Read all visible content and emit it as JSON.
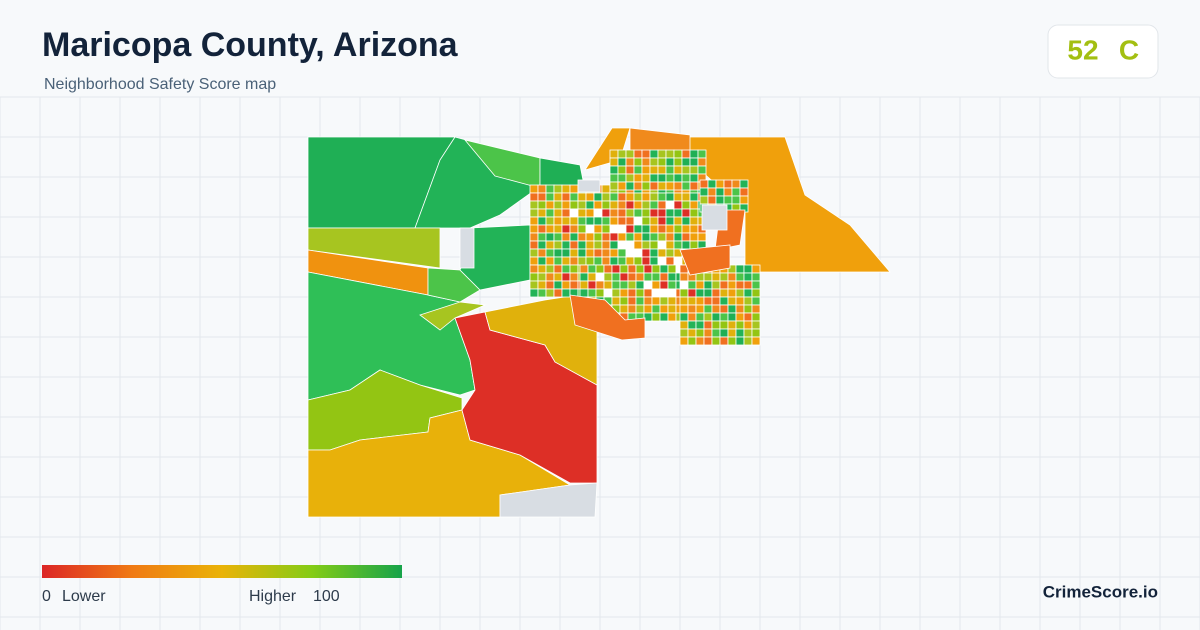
{
  "header": {
    "title": "Maricopa County, Arizona",
    "subtitle": "Neighborhood Safety Score map"
  },
  "score": {
    "value": 52,
    "grade": "C"
  },
  "legend": {
    "min": 0,
    "min_label": "Lower",
    "max_label": "Higher",
    "max": 100
  },
  "brand": "CrimeScore.io"
}
